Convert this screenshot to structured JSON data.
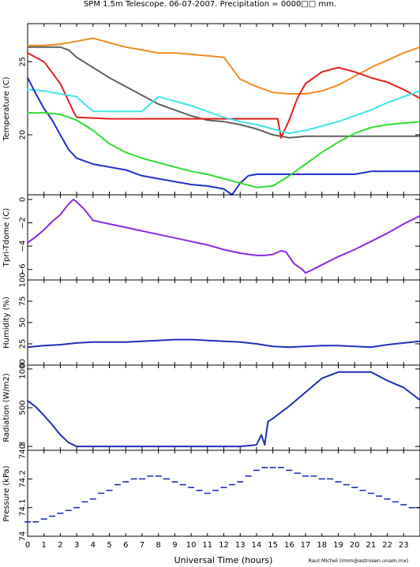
{
  "title": "SPM 1.5m Telescope. 06-07-2007. Precipitation = 0000□□ mm.",
  "xlabel": "Universal Time (hours)",
  "credit": "Raul Michel (rmm@astrosen.unam.mx)",
  "chart_data": [
    {
      "type": "line",
      "ylabel": "Temperature (C)",
      "xlim": [
        0,
        24
      ],
      "ylim": [
        15.9,
        27.6
      ],
      "yticks": [
        20,
        25
      ],
      "grid": false,
      "series": [
        {
          "color": "#f08c1e",
          "x": [
            0,
            1,
            2,
            3,
            4,
            5,
            6,
            7,
            8,
            9,
            10,
            11,
            12,
            13,
            14,
            15,
            16,
            17,
            18,
            19,
            20,
            21,
            22,
            23,
            24
          ],
          "y": [
            26.1,
            26.1,
            26.2,
            26.4,
            26.6,
            26.3,
            26.0,
            25.8,
            25.6,
            25.6,
            25.5,
            25.4,
            25.3,
            23.8,
            23.3,
            22.9,
            22.8,
            22.8,
            23.0,
            23.4,
            24.0,
            24.6,
            25.1,
            25.6,
            26.0
          ]
        },
        {
          "color": "#606060",
          "x": [
            0,
            1,
            2,
            2.5,
            3,
            4,
            5,
            6,
            7,
            8,
            9,
            10,
            11,
            12,
            13,
            14,
            15,
            15.5,
            16,
            17,
            18,
            20,
            22,
            24
          ],
          "y": [
            26.0,
            26.0,
            26.0,
            25.8,
            25.3,
            24.6,
            23.9,
            23.3,
            22.7,
            22.1,
            21.7,
            21.3,
            21.0,
            20.9,
            20.7,
            20.4,
            20.0,
            19.9,
            19.8,
            19.9,
            19.9,
            19.9,
            19.9,
            19.9
          ]
        },
        {
          "color": "#e0201e",
          "x": [
            0,
            1,
            2,
            2.8,
            3,
            5,
            7,
            9,
            11,
            13,
            15.3,
            15.5,
            16,
            16.5,
            17,
            18,
            19,
            20,
            21,
            22,
            23,
            24
          ],
          "y": [
            25.6,
            25.0,
            23.5,
            21.6,
            21.2,
            21.1,
            21.1,
            21.1,
            21.1,
            21.1,
            21.1,
            19.8,
            21.0,
            22.5,
            23.5,
            24.3,
            24.6,
            24.3,
            23.9,
            23.6,
            23.1,
            22.5
          ]
        },
        {
          "color": "#3fe6e6",
          "x": [
            0,
            1,
            2,
            3,
            4,
            5,
            7,
            8,
            10,
            11,
            12,
            13,
            14,
            15,
            16,
            17,
            18,
            19,
            20,
            21,
            22,
            23,
            24
          ],
          "y": [
            23.1,
            23.0,
            22.8,
            22.6,
            21.6,
            21.6,
            21.6,
            22.6,
            22.0,
            21.6,
            21.2,
            20.9,
            20.7,
            20.4,
            20.1,
            20.3,
            20.6,
            20.9,
            21.3,
            21.7,
            22.2,
            22.6,
            23.0
          ]
        },
        {
          "color": "#2030c8",
          "x": [
            0,
            0.5,
            1,
            1.5,
            2,
            2.5,
            3,
            4,
            5,
            6,
            7,
            8,
            9,
            10,
            11,
            12,
            12.5,
            13,
            13.5,
            14,
            15,
            16,
            17,
            18,
            19,
            20,
            21,
            22,
            23,
            24
          ],
          "y": [
            23.9,
            22.8,
            21.8,
            21.0,
            20.0,
            19.0,
            18.4,
            18.0,
            17.8,
            17.6,
            17.2,
            17.0,
            16.8,
            16.6,
            16.5,
            16.3,
            15.9,
            16.7,
            17.2,
            17.3,
            17.3,
            17.3,
            17.3,
            17.3,
            17.3,
            17.3,
            17.5,
            17.5,
            17.5,
            17.5
          ]
        },
        {
          "color": "#32dc32",
          "x": [
            0,
            1,
            2,
            3,
            4,
            5,
            6,
            7,
            8,
            9,
            10,
            11,
            12,
            13,
            14,
            15,
            16,
            17,
            18,
            19,
            20,
            21,
            22,
            23,
            24
          ],
          "y": [
            21.5,
            21.5,
            21.4,
            21.0,
            20.3,
            19.4,
            18.8,
            18.4,
            18.1,
            17.8,
            17.5,
            17.3,
            17.0,
            16.7,
            16.4,
            16.5,
            17.2,
            18.0,
            18.8,
            19.5,
            20.1,
            20.5,
            20.7,
            20.8,
            20.9
          ]
        }
      ]
    },
    {
      "type": "line",
      "ylabel": "Tpri-Tdome (C)",
      "xlim": [
        0,
        24
      ],
      "ylim": [
        -6.9,
        0.4
      ],
      "yticks": [
        -6,
        -4,
        -2,
        0
      ],
      "grid": false,
      "series": [
        {
          "color": "#8a2be2",
          "x": [
            0,
            0.5,
            1,
            1.5,
            2,
            2.5,
            2.8,
            3,
            3.5,
            4,
            5,
            6,
            7,
            8,
            9,
            10,
            11,
            12,
            13,
            14,
            14.5,
            15,
            15.5,
            15.8,
            16.3,
            16.8,
            17,
            17.3,
            18,
            19,
            20,
            21,
            22,
            23,
            24
          ],
          "y": [
            -3.7,
            -3.2,
            -2.6,
            -1.9,
            -1.3,
            -0.4,
            0.0,
            -0.2,
            -0.9,
            -1.8,
            -2.1,
            -2.4,
            -2.7,
            -3.0,
            -3.3,
            -3.6,
            -3.9,
            -4.3,
            -4.6,
            -4.8,
            -4.8,
            -4.7,
            -4.4,
            -4.5,
            -5.5,
            -6.0,
            -6.3,
            -6.1,
            -5.6,
            -4.9,
            -4.3,
            -3.6,
            -2.9,
            -2.1,
            -1.4
          ]
        }
      ]
    },
    {
      "type": "line",
      "ylabel": "Humidity (%)",
      "xlim": [
        0,
        24
      ],
      "ylim": [
        0,
        100
      ],
      "yticks": [
        0,
        25,
        50,
        75,
        100
      ],
      "grid": false,
      "series": [
        {
          "color": "#1f2fb8",
          "x": [
            0,
            1,
            2,
            3,
            4,
            5,
            6,
            7,
            8,
            9,
            10,
            11,
            12,
            13,
            14,
            15,
            16,
            17,
            18,
            19,
            20,
            21,
            22,
            23,
            24
          ],
          "y": [
            21,
            23,
            24,
            26,
            27,
            27,
            27,
            28,
            29,
            30,
            30,
            29,
            28,
            27,
            25,
            22,
            21,
            22,
            23,
            23,
            22,
            21,
            24,
            26,
            28
          ]
        }
      ]
    },
    {
      "type": "line",
      "ylabel": "Radiation (W/m2)",
      "xlim": [
        0,
        24
      ],
      "ylim": [
        -50,
        1050
      ],
      "yticks": [
        0,
        500,
        1000
      ],
      "grid": false,
      "series": [
        {
          "color": "#1f2fb8",
          "x": [
            0,
            0.5,
            1,
            1.5,
            2,
            2.5,
            3,
            4,
            6,
            8,
            10,
            12,
            13,
            14,
            14.3,
            14.5,
            14.7,
            15,
            16,
            17,
            18,
            19,
            20,
            21,
            22,
            23,
            24
          ],
          "y": [
            590,
            510,
            400,
            280,
            150,
            50,
            0,
            0,
            0,
            0,
            0,
            0,
            0,
            20,
            150,
            20,
            320,
            360,
            520,
            700,
            880,
            960,
            960,
            960,
            850,
            760,
            600
          ]
        }
      ]
    },
    {
      "type": "scatter",
      "ylabel": "Pressure (kPa)",
      "xlim": [
        0,
        24
      ],
      "ylim": [
        74.0,
        74.3
      ],
      "yticks": [
        74,
        74.1,
        74.2,
        74.3
      ],
      "grid": false,
      "series": [
        {
          "color": "#1f2fb8",
          "x": [
            0,
            0.5,
            1,
            1.5,
            2,
            2.5,
            3,
            3.5,
            4,
            4.5,
            5,
            5.5,
            6,
            6.5,
            7,
            7.5,
            8,
            8.5,
            9,
            9.5,
            10,
            10.5,
            11,
            11.5,
            12,
            12.5,
            13,
            13.5,
            14,
            14.5,
            15,
            15.5,
            16,
            16.5,
            17,
            17.5,
            18,
            18.5,
            19,
            19.5,
            20,
            20.5,
            21,
            21.5,
            22,
            22.5,
            23,
            23.5,
            24
          ],
          "y": [
            74.05,
            74.05,
            74.06,
            74.07,
            74.08,
            74.09,
            74.1,
            74.12,
            74.13,
            74.15,
            74.16,
            74.18,
            74.19,
            74.2,
            74.2,
            74.21,
            74.21,
            74.2,
            74.19,
            74.18,
            74.17,
            74.16,
            74.15,
            74.16,
            74.17,
            74.18,
            74.19,
            74.21,
            74.23,
            74.24,
            74.24,
            74.24,
            74.23,
            74.22,
            74.21,
            74.21,
            74.2,
            74.2,
            74.19,
            74.18,
            74.17,
            74.16,
            74.15,
            74.14,
            74.13,
            74.12,
            74.11,
            74.1,
            74.1
          ]
        }
      ]
    }
  ]
}
